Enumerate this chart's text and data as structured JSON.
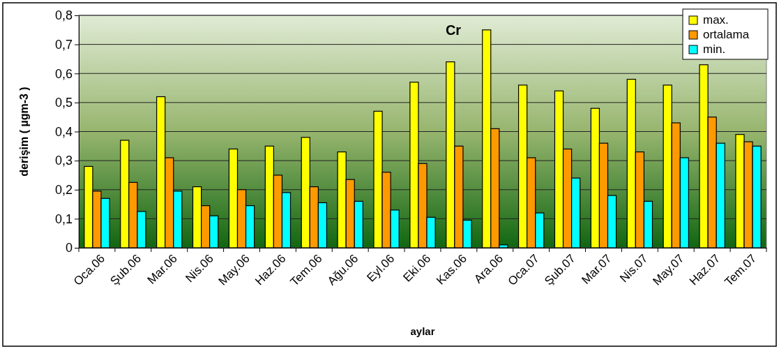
{
  "chart_data": {
    "type": "bar",
    "title": "Cr",
    "xlabel": "aylar",
    "ylabel": "derişim  ( µgm-3 )",
    "categories": [
      "Oca.06",
      "Şub.06",
      "Mar.06",
      "Nis.06",
      "May.06",
      "Haz.06",
      "Tem.06",
      "Ağu.06",
      "Eyl.06",
      "Eki.06",
      "Kas.06",
      "Ara.06",
      "Oca.07",
      "Şub.07",
      "Mar.07",
      "Nis.07",
      "May.07",
      "Haz.07",
      "Tem.07"
    ],
    "series": [
      {
        "name": "max.",
        "color": "#ffff00",
        "values": [
          0.28,
          0.37,
          0.52,
          0.21,
          0.34,
          0.35,
          0.38,
          0.33,
          0.47,
          0.57,
          0.64,
          0.75,
          0.56,
          0.54,
          0.48,
          0.58,
          0.56,
          0.63,
          0.39
        ]
      },
      {
        "name": "ortalama",
        "color": "#ff9900",
        "values": [
          0.195,
          0.225,
          0.31,
          0.145,
          0.2,
          0.25,
          0.21,
          0.235,
          0.26,
          0.29,
          0.35,
          0.41,
          0.31,
          0.34,
          0.36,
          0.33,
          0.43,
          0.45,
          0.365
        ]
      },
      {
        "name": "min.",
        "color": "#00ffff",
        "values": [
          0.17,
          0.125,
          0.195,
          0.11,
          0.145,
          0.19,
          0.155,
          0.16,
          0.13,
          0.105,
          0.095,
          0.01,
          0.12,
          0.24,
          0.18,
          0.16,
          0.31,
          0.36,
          0.35
        ]
      }
    ],
    "ylim": [
      0,
      0.8
    ],
    "yticks": [
      {
        "value": 0,
        "label": "0"
      },
      {
        "value": 0.1,
        "label": "0,1"
      },
      {
        "value": 0.2,
        "label": "0,2"
      },
      {
        "value": 0.3,
        "label": "0,3"
      },
      {
        "value": 0.4,
        "label": "0,4"
      },
      {
        "value": 0.5,
        "label": "0,5"
      },
      {
        "value": 0.6,
        "label": "0,6"
      },
      {
        "value": 0.7,
        "label": "0,7"
      },
      {
        "value": 0.8,
        "label": "0,8"
      }
    ],
    "grid": "y",
    "legend": "top right"
  }
}
